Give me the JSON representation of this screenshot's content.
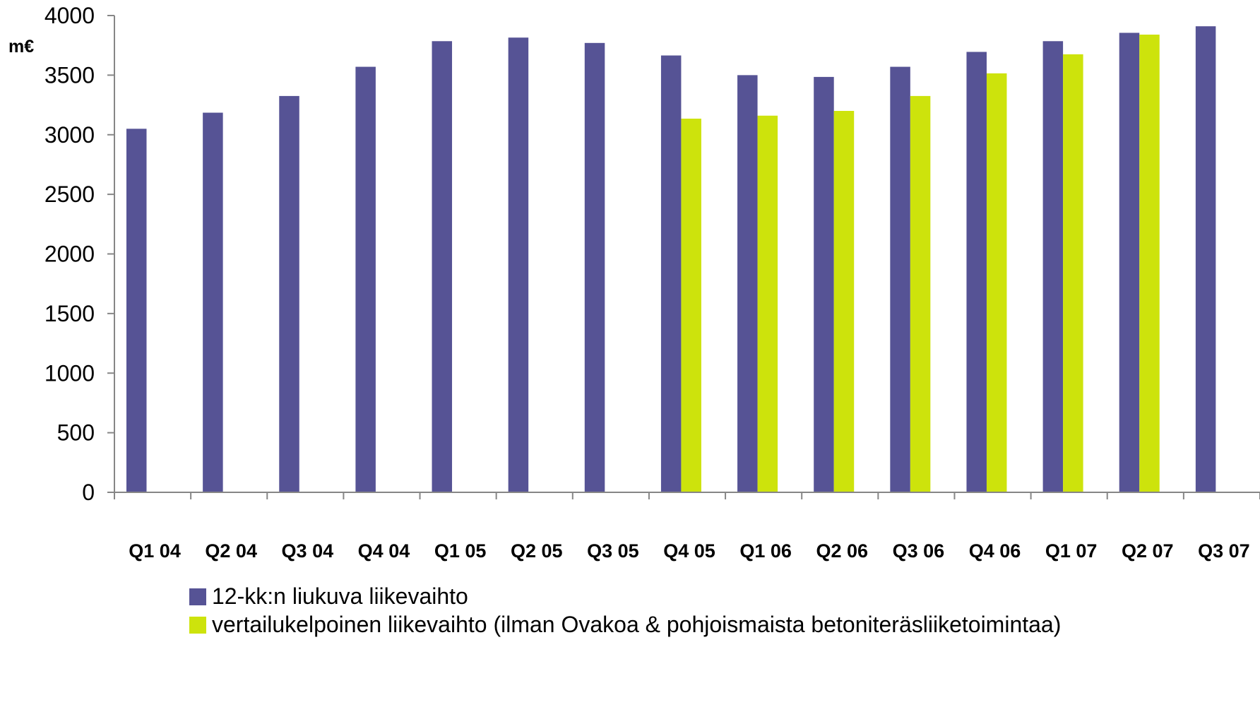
{
  "chart_data": {
    "type": "bar",
    "unit_label": "m€",
    "categories": [
      "Q1 04",
      "Q2 04",
      "Q3 04",
      "Q4 04",
      "Q1 05",
      "Q2 05",
      "Q3 05",
      "Q4 05",
      "Q1 06",
      "Q2 06",
      "Q3 06",
      "Q4 06",
      "Q1 07",
      "Q2 07",
      "Q3 07"
    ],
    "series": [
      {
        "name": "12-kk:n liukuva liikevaihto",
        "color": "#565395",
        "values": [
          3050,
          3185,
          3325,
          3570,
          3785,
          3815,
          3770,
          3665,
          3500,
          3485,
          3570,
          3695,
          3785,
          3855,
          3910
        ]
      },
      {
        "name": "vertailukelpoinen liikevaihto (ilman Ovakoa & pohjoismaista betoniteräsliiketoimintaa)",
        "color": "#cde30c",
        "values": [
          null,
          null,
          null,
          null,
          null,
          null,
          null,
          3135,
          3160,
          3200,
          3325,
          3515,
          3675,
          3840,
          null
        ]
      }
    ],
    "ylim": [
      0,
      4000
    ],
    "yticks": [
      "0",
      "500",
      "1000",
      "1500",
      "2000",
      "2500",
      "3000",
      "3500",
      "4000"
    ],
    "grid": false,
    "legend_position": "bottom"
  }
}
